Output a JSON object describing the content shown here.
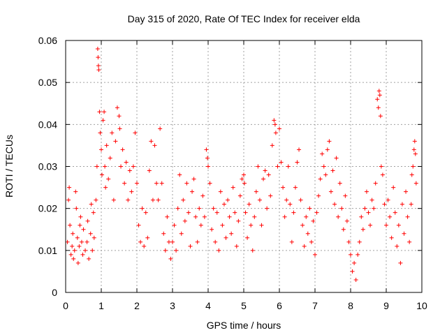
{
  "chart_data": {
    "type": "scatter",
    "title": "Day 315 of 2020, Rate Of TEC Index for receiver elda",
    "xlabel": "GPS time / hours",
    "ylabel": "ROTI / TECUs",
    "xlim": [
      0,
      10
    ],
    "ylim": [
      0,
      0.06
    ],
    "xticks": [
      0,
      1,
      2,
      3,
      4,
      5,
      6,
      7,
      8,
      9,
      10
    ],
    "yticks": [
      0,
      0.01,
      0.02,
      0.03,
      0.04,
      0.05,
      0.06
    ],
    "xtick_labels": [
      "0",
      "1",
      "2",
      "3",
      "4",
      "5",
      "6",
      "7",
      "8",
      "9",
      "10"
    ],
    "ytick_labels": [
      "0",
      "0.01",
      "0.02",
      "0.03",
      "0.04",
      "0.05",
      "0.06"
    ],
    "grid": true,
    "marker": "+",
    "color": "#ff0000",
    "series": [
      {
        "name": "ROTI",
        "points": [
          [
            0.05,
            0.012
          ],
          [
            0.08,
            0.022
          ],
          [
            0.1,
            0.025
          ],
          [
            0.12,
            0.016
          ],
          [
            0.15,
            0.009
          ],
          [
            0.18,
            0.011
          ],
          [
            0.2,
            0.014
          ],
          [
            0.22,
            0.008
          ],
          [
            0.25,
            0.01
          ],
          [
            0.28,
            0.024
          ],
          [
            0.3,
            0.02
          ],
          [
            0.33,
            0.013
          ],
          [
            0.35,
            0.007
          ],
          [
            0.38,
            0.011
          ],
          [
            0.4,
            0.016
          ],
          [
            0.42,
            0.018
          ],
          [
            0.45,
            0.012
          ],
          [
            0.48,
            0.009
          ],
          [
            0.5,
            0.015
          ],
          [
            0.55,
            0.01
          ],
          [
            0.6,
            0.012
          ],
          [
            0.62,
            0.017
          ],
          [
            0.65,
            0.008
          ],
          [
            0.7,
            0.014
          ],
          [
            0.72,
            0.021
          ],
          [
            0.75,
            0.01
          ],
          [
            0.78,
            0.019
          ],
          [
            0.8,
            0.013
          ],
          [
            0.85,
            0.022
          ],
          [
            0.88,
            0.03
          ],
          [
            0.9,
            0.058
          ],
          [
            0.91,
            0.056
          ],
          [
            0.92,
            0.054
          ],
          [
            0.93,
            0.053
          ],
          [
            0.95,
            0.043
          ],
          [
            0.97,
            0.038
          ],
          [
            1.0,
            0.034
          ],
          [
            1.02,
            0.028
          ],
          [
            1.05,
            0.041
          ],
          [
            1.08,
            0.043
          ],
          [
            1.1,
            0.03
          ],
          [
            1.12,
            0.025
          ],
          [
            1.15,
            0.035
          ],
          [
            1.2,
            0.027
          ],
          [
            1.25,
            0.032
          ],
          [
            1.3,
            0.038
          ],
          [
            1.35,
            0.022
          ],
          [
            1.4,
            0.036
          ],
          [
            1.45,
            0.044
          ],
          [
            1.5,
            0.042
          ],
          [
            1.52,
            0.039
          ],
          [
            1.55,
            0.03
          ],
          [
            1.6,
            0.034
          ],
          [
            1.65,
            0.026
          ],
          [
            1.7,
            0.031
          ],
          [
            1.75,
            0.022
          ],
          [
            1.8,
            0.029
          ],
          [
            1.85,
            0.024
          ],
          [
            1.9,
            0.03
          ],
          [
            1.95,
            0.038
          ],
          [
            2.0,
            0.026
          ],
          [
            2.05,
            0.016
          ],
          [
            2.1,
            0.012
          ],
          [
            2.15,
            0.02
          ],
          [
            2.2,
            0.011
          ],
          [
            2.25,
            0.019
          ],
          [
            2.3,
            0.013
          ],
          [
            2.35,
            0.029
          ],
          [
            2.4,
            0.036
          ],
          [
            2.45,
            0.022
          ],
          [
            2.5,
            0.035
          ],
          [
            2.55,
            0.026
          ],
          [
            2.6,
            0.022
          ],
          [
            2.65,
            0.039
          ],
          [
            2.7,
            0.026
          ],
          [
            2.75,
            0.014
          ],
          [
            2.8,
            0.01
          ],
          [
            2.85,
            0.018
          ],
          [
            2.9,
            0.012
          ],
          [
            2.95,
            0.008
          ],
          [
            3.0,
            0.012
          ],
          [
            3.05,
            0.016
          ],
          [
            3.1,
            0.01
          ],
          [
            3.15,
            0.02
          ],
          [
            3.2,
            0.028
          ],
          [
            3.25,
            0.014
          ],
          [
            3.3,
            0.022
          ],
          [
            3.35,
            0.017
          ],
          [
            3.4,
            0.026
          ],
          [
            3.45,
            0.019
          ],
          [
            3.5,
            0.011
          ],
          [
            3.55,
            0.024
          ],
          [
            3.6,
            0.027
          ],
          [
            3.65,
            0.018
          ],
          [
            3.7,
            0.012
          ],
          [
            3.75,
            0.02
          ],
          [
            3.8,
            0.016
          ],
          [
            3.85,
            0.023
          ],
          [
            3.9,
            0.018
          ],
          [
            3.95,
            0.034
          ],
          [
            3.98,
            0.032
          ],
          [
            4.0,
            0.03
          ],
          [
            4.05,
            0.026
          ],
          [
            4.1,
            0.015
          ],
          [
            4.15,
            0.02
          ],
          [
            4.2,
            0.012
          ],
          [
            4.25,
            0.019
          ],
          [
            4.3,
            0.01
          ],
          [
            4.35,
            0.024
          ],
          [
            4.4,
            0.016
          ],
          [
            4.45,
            0.021
          ],
          [
            4.5,
            0.013
          ],
          [
            4.55,
            0.022
          ],
          [
            4.6,
            0.018
          ],
          [
            4.65,
            0.014
          ],
          [
            4.7,
            0.025
          ],
          [
            4.75,
            0.019
          ],
          [
            4.8,
            0.011
          ],
          [
            4.85,
            0.017
          ],
          [
            4.9,
            0.023
          ],
          [
            4.95,
            0.027
          ],
          [
            5.0,
            0.028
          ],
          [
            5.02,
            0.026
          ],
          [
            5.05,
            0.019
          ],
          [
            5.1,
            0.013
          ],
          [
            5.15,
            0.021
          ],
          [
            5.2,
            0.016
          ],
          [
            5.25,
            0.01
          ],
          [
            5.3,
            0.018
          ],
          [
            5.35,
            0.024
          ],
          [
            5.4,
            0.03
          ],
          [
            5.45,
            0.022
          ],
          [
            5.5,
            0.016
          ],
          [
            5.55,
            0.027
          ],
          [
            5.6,
            0.029
          ],
          [
            5.65,
            0.02
          ],
          [
            5.7,
            0.028
          ],
          [
            5.75,
            0.023
          ],
          [
            5.8,
            0.035
          ],
          [
            5.85,
            0.041
          ],
          [
            5.88,
            0.04
          ],
          [
            5.9,
            0.038
          ],
          [
            5.95,
            0.03
          ],
          [
            6.0,
            0.039
          ],
          [
            6.05,
            0.031
          ],
          [
            6.1,
            0.025
          ],
          [
            6.15,
            0.018
          ],
          [
            6.2,
            0.022
          ],
          [
            6.25,
            0.03
          ],
          [
            6.3,
            0.021
          ],
          [
            6.35,
            0.012
          ],
          [
            6.4,
            0.019
          ],
          [
            6.45,
            0.025
          ],
          [
            6.5,
            0.031
          ],
          [
            6.55,
            0.034
          ],
          [
            6.6,
            0.022
          ],
          [
            6.65,
            0.016
          ],
          [
            6.7,
            0.011
          ],
          [
            6.75,
            0.018
          ],
          [
            6.8,
            0.014
          ],
          [
            6.85,
            0.02
          ],
          [
            6.9,
            0.012
          ],
          [
            6.95,
            0.017
          ],
          [
            7.0,
            0.009
          ],
          [
            7.05,
            0.019
          ],
          [
            7.1,
            0.023
          ],
          [
            7.15,
            0.027
          ],
          [
            7.2,
            0.033
          ],
          [
            7.25,
            0.03
          ],
          [
            7.3,
            0.028
          ],
          [
            7.35,
            0.034
          ],
          [
            7.4,
            0.036
          ],
          [
            7.45,
            0.024
          ],
          [
            7.5,
            0.029
          ],
          [
            7.55,
            0.021
          ],
          [
            7.6,
            0.032
          ],
          [
            7.65,
            0.018
          ],
          [
            7.7,
            0.026
          ],
          [
            7.75,
            0.02
          ],
          [
            7.8,
            0.015
          ],
          [
            7.85,
            0.023
          ],
          [
            7.9,
            0.017
          ],
          [
            7.95,
            0.012
          ],
          [
            8.0,
            0.009
          ],
          [
            8.05,
            0.005
          ],
          [
            8.1,
            0.007
          ],
          [
            8.15,
            0.003
          ],
          [
            8.2,
            0.009
          ],
          [
            8.25,
            0.012
          ],
          [
            8.3,
            0.018
          ],
          [
            8.35,
            0.015
          ],
          [
            8.4,
            0.02
          ],
          [
            8.45,
            0.024
          ],
          [
            8.5,
            0.019
          ],
          [
            8.55,
            0.016
          ],
          [
            8.6,
            0.022
          ],
          [
            8.65,
            0.02
          ],
          [
            8.7,
            0.026
          ],
          [
            8.75,
            0.046
          ],
          [
            8.78,
            0.044
          ],
          [
            8.8,
            0.048
          ],
          [
            8.82,
            0.047
          ],
          [
            8.84,
            0.042
          ],
          [
            8.86,
            0.03
          ],
          [
            8.9,
            0.028
          ],
          [
            8.95,
            0.021
          ],
          [
            9.0,
            0.016
          ],
          [
            9.05,
            0.022
          ],
          [
            9.1,
            0.018
          ],
          [
            9.15,
            0.013
          ],
          [
            9.2,
            0.025
          ],
          [
            9.25,
            0.019
          ],
          [
            9.3,
            0.011
          ],
          [
            9.35,
            0.016
          ],
          [
            9.4,
            0.007
          ],
          [
            9.45,
            0.021
          ],
          [
            9.5,
            0.014
          ],
          [
            9.55,
            0.024
          ],
          [
            9.6,
            0.018
          ],
          [
            9.65,
            0.012
          ],
          [
            9.7,
            0.021
          ],
          [
            9.72,
            0.028
          ],
          [
            9.75,
            0.03
          ],
          [
            9.78,
            0.034
          ],
          [
            9.8,
            0.036
          ],
          [
            9.82,
            0.033
          ],
          [
            9.84,
            0.026
          ]
        ]
      }
    ]
  }
}
